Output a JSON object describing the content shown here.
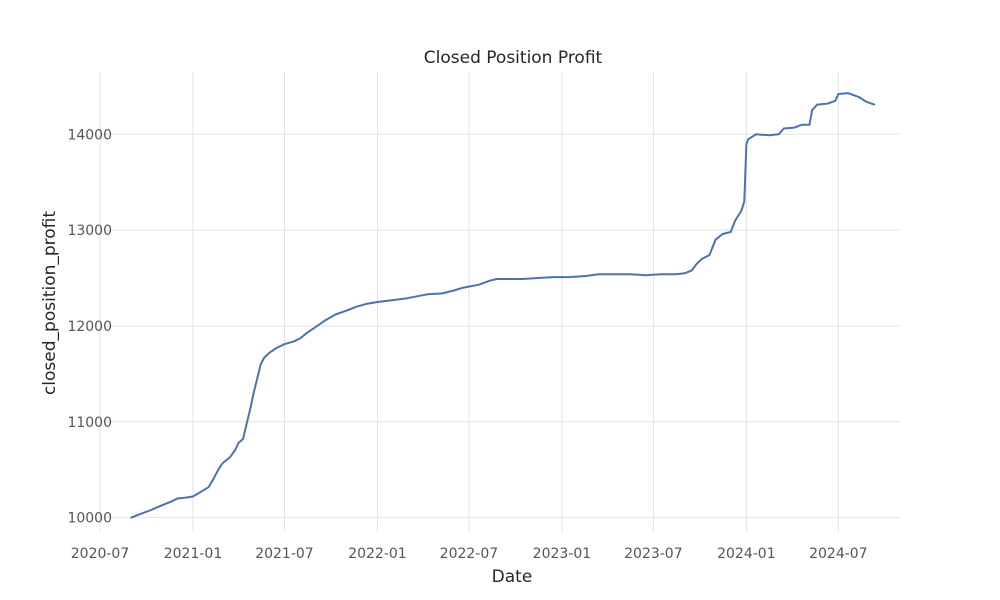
{
  "chart_data": {
    "type": "line",
    "title": "Closed Position Profit",
    "xlabel": "Date",
    "ylabel": "closed_position_profit",
    "xlim": [
      "2020-07-01",
      "2024-10-31"
    ],
    "ylim": [
      9850,
      14650
    ],
    "x_ticks": [
      "2020-07",
      "2021-01",
      "2021-07",
      "2022-01",
      "2022-07",
      "2023-01",
      "2023-07",
      "2024-01",
      "2024-07"
    ],
    "y_ticks": [
      10000,
      11000,
      12000,
      13000,
      14000
    ],
    "grid": true,
    "legend": "none",
    "series": [
      {
        "color": "#4c72b0",
        "points": [
          [
            "2020-09-01",
            10000
          ],
          [
            "2020-09-20",
            10040
          ],
          [
            "2020-10-10",
            10080
          ],
          [
            "2020-11-01",
            10130
          ],
          [
            "2020-11-20",
            10170
          ],
          [
            "2020-12-01",
            10200
          ],
          [
            "2020-12-20",
            10210
          ],
          [
            "2021-01-01",
            10220
          ],
          [
            "2021-01-20",
            10280
          ],
          [
            "2021-02-01",
            10320
          ],
          [
            "2021-02-10",
            10400
          ],
          [
            "2021-02-20",
            10500
          ],
          [
            "2021-03-01",
            10570
          ],
          [
            "2021-03-15",
            10630
          ],
          [
            "2021-03-25",
            10700
          ],
          [
            "2021-04-01",
            10780
          ],
          [
            "2021-04-10",
            10820
          ],
          [
            "2021-04-18",
            11000
          ],
          [
            "2021-04-25",
            11150
          ],
          [
            "2021-05-01",
            11300
          ],
          [
            "2021-05-08",
            11450
          ],
          [
            "2021-05-15",
            11600
          ],
          [
            "2021-05-22",
            11670
          ],
          [
            "2021-06-01",
            11720
          ],
          [
            "2021-06-15",
            11770
          ],
          [
            "2021-07-01",
            11810
          ],
          [
            "2021-07-20",
            11840
          ],
          [
            "2021-08-01",
            11870
          ],
          [
            "2021-08-15",
            11930
          ],
          [
            "2021-09-01",
            11990
          ],
          [
            "2021-09-20",
            12060
          ],
          [
            "2021-10-10",
            12120
          ],
          [
            "2021-11-01",
            12160
          ],
          [
            "2021-11-20",
            12200
          ],
          [
            "2021-12-10",
            12230
          ],
          [
            "2022-01-01",
            12250
          ],
          [
            "2022-02-01",
            12270
          ],
          [
            "2022-03-01",
            12290
          ],
          [
            "2022-03-20",
            12310
          ],
          [
            "2022-04-10",
            12330
          ],
          [
            "2022-05-10",
            12340
          ],
          [
            "2022-06-01",
            12370
          ],
          [
            "2022-06-20",
            12400
          ],
          [
            "2022-07-20",
            12430
          ],
          [
            "2022-08-10",
            12470
          ],
          [
            "2022-08-25",
            12490
          ],
          [
            "2022-09-15",
            12490
          ],
          [
            "2022-10-15",
            12490
          ],
          [
            "2022-11-15",
            12500
          ],
          [
            "2022-12-15",
            12510
          ],
          [
            "2023-01-15",
            12510
          ],
          [
            "2023-02-15",
            12520
          ],
          [
            "2023-03-15",
            12540
          ],
          [
            "2023-04-15",
            12540
          ],
          [
            "2023-05-15",
            12540
          ],
          [
            "2023-06-15",
            12530
          ],
          [
            "2023-07-15",
            12540
          ],
          [
            "2023-08-15",
            12540
          ],
          [
            "2023-09-01",
            12550
          ],
          [
            "2023-09-15",
            12580
          ],
          [
            "2023-09-25",
            12650
          ],
          [
            "2023-10-05",
            12700
          ],
          [
            "2023-10-20",
            12740
          ],
          [
            "2023-11-01",
            12900
          ],
          [
            "2023-11-15",
            12960
          ],
          [
            "2023-12-01",
            12980
          ],
          [
            "2023-12-10",
            13100
          ],
          [
            "2023-12-22",
            13200
          ],
          [
            "2023-12-28",
            13300
          ],
          [
            "2024-01-01",
            13900
          ],
          [
            "2024-01-05",
            13950
          ],
          [
            "2024-01-20",
            14000
          ],
          [
            "2024-02-15",
            13990
          ],
          [
            "2024-03-05",
            14000
          ],
          [
            "2024-03-15",
            14060
          ],
          [
            "2024-04-05",
            14070
          ],
          [
            "2024-04-20",
            14100
          ],
          [
            "2024-05-05",
            14100
          ],
          [
            "2024-05-10",
            14250
          ],
          [
            "2024-05-20",
            14310
          ],
          [
            "2024-06-10",
            14320
          ],
          [
            "2024-06-25",
            14350
          ],
          [
            "2024-07-01",
            14420
          ],
          [
            "2024-07-20",
            14430
          ],
          [
            "2024-08-10",
            14390
          ],
          [
            "2024-08-25",
            14340
          ],
          [
            "2024-09-10",
            14310
          ]
        ]
      }
    ]
  }
}
